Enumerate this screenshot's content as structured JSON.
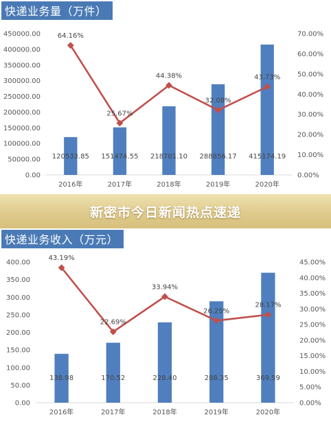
{
  "banner": {
    "text": "新密市今日新闻热点速递"
  },
  "colors": {
    "bar": "#4f7fbe",
    "line": "#c0504d",
    "banner": "#e0cc8f",
    "title_bg": "#4a7ab5"
  },
  "chart_data": [
    {
      "type": "bar",
      "title": "快递业务量（万件）",
      "categories": [
        "2016年",
        "2017年",
        "2018年",
        "2019年",
        "2020年"
      ],
      "series": [
        {
          "values": [
            120533.85,
            151474.55,
            218701.1,
            288856.17,
            415174.19
          ],
          "labels": [
            "120533.85",
            "151474.55",
            "218701.10",
            "288856.17",
            "415174.19"
          ]
        },
        {
          "type": "line",
          "axis": "right",
          "values": [
            64.16,
            25.67,
            44.38,
            32.08,
            43.73
          ],
          "labels": [
            "64.16%",
            "25.67%",
            "44.38%",
            "32.08%",
            "43.73%"
          ]
        }
      ],
      "ylim": [
        0,
        450000
      ],
      "yticks": [
        "0.00",
        "50000.00",
        "100000.00",
        "150000.00",
        "200000.00",
        "250000.00",
        "300000.00",
        "350000.00",
        "400000.00",
        "450000.00"
      ],
      "y2lim": [
        0,
        70
      ],
      "y2ticks": [
        "0.00%",
        "10.00%",
        "20.00%",
        "30.00%",
        "40.00%",
        "50.00%",
        "60.00%",
        "70.00%"
      ],
      "grid": false
    },
    {
      "type": "bar",
      "title": "快递业务收入（万元）",
      "categories": [
        "2016年",
        "2017年",
        "2018年",
        "2019年",
        "2020年"
      ],
      "series": [
        {
          "values": [
            138.98,
            170.52,
            228.4,
            288.35,
            369.59
          ],
          "labels": [
            "138.98",
            "170.52",
            "228.40",
            "288.35",
            "369.59"
          ]
        },
        {
          "type": "line",
          "axis": "right",
          "values": [
            43.19,
            22.69,
            33.94,
            26.25,
            28.17
          ],
          "labels": [
            "43.19%",
            "22.69%",
            "33.94%",
            "26.25%",
            "28.17%"
          ]
        }
      ],
      "ylim": [
        0,
        400
      ],
      "yticks": [
        "0.00",
        "50.00",
        "100.00",
        "150.00",
        "200.00",
        "250.00",
        "300.00",
        "350.00",
        "400.00"
      ],
      "y2lim": [
        0,
        45
      ],
      "y2ticks": [
        "0.00%",
        "5.00%",
        "10.00%",
        "15.00%",
        "20.00%",
        "25.00%",
        "30.00%",
        "35.00%",
        "40.00%",
        "45.00%"
      ],
      "grid": false
    }
  ]
}
